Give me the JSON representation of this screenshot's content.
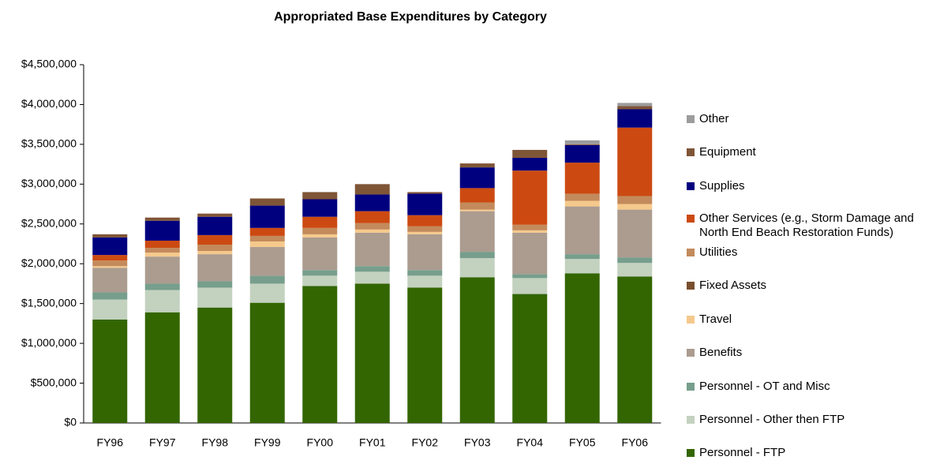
{
  "chart_data": {
    "type": "stacked_bar",
    "title": "Appropriated Base Expenditures by Category",
    "categories": [
      "FY96",
      "FY97",
      "FY98",
      "FY99",
      "FY00",
      "FY01",
      "FY02",
      "FY03",
      "FY04",
      "FY05",
      "FY06"
    ],
    "series": [
      {
        "name": "Personnel - FTP",
        "color": "#336600",
        "values": [
          1300000,
          1390000,
          1450000,
          1510000,
          1720000,
          1750000,
          1700000,
          1830000,
          1620000,
          1880000,
          1840000
        ]
      },
      {
        "name": "Personnel - Other then FTP",
        "color": "#c3d1bf",
        "values": [
          250000,
          280000,
          250000,
          240000,
          130000,
          150000,
          150000,
          240000,
          200000,
          180000,
          170000
        ]
      },
      {
        "name": "Personnel - OT and Misc",
        "color": "#779e8c",
        "values": [
          90000,
          80000,
          80000,
          100000,
          70000,
          70000,
          70000,
          80000,
          50000,
          60000,
          70000
        ]
      },
      {
        "name": "Benefits",
        "color": "#ab9c8f",
        "values": [
          310000,
          340000,
          340000,
          360000,
          410000,
          420000,
          450000,
          510000,
          520000,
          600000,
          600000
        ]
      },
      {
        "name": "Travel",
        "color": "#f5c98c",
        "values": [
          20000,
          50000,
          40000,
          70000,
          40000,
          40000,
          30000,
          20000,
          30000,
          70000,
          70000
        ]
      },
      {
        "name": "Fixed Assets",
        "color": "#7a4e2d",
        "values": [
          0,
          0,
          0,
          0,
          0,
          0,
          0,
          0,
          0,
          0,
          0
        ]
      },
      {
        "name": "Utilities",
        "color": "#c38a5c",
        "values": [
          70000,
          60000,
          80000,
          70000,
          80000,
          80000,
          70000,
          90000,
          70000,
          90000,
          100000
        ]
      },
      {
        "name": "Other Services (e.g., Storm Damage and North End Beach Restoration Funds)",
        "color": "#cc4a12",
        "values": [
          70000,
          90000,
          120000,
          100000,
          140000,
          150000,
          140000,
          180000,
          680000,
          390000,
          860000
        ]
      },
      {
        "name": "Supplies",
        "color": "#00007f",
        "values": [
          220000,
          250000,
          230000,
          280000,
          220000,
          210000,
          270000,
          260000,
          160000,
          220000,
          230000
        ]
      },
      {
        "name": "Equipment",
        "color": "#7f5537",
        "values": [
          40000,
          40000,
          40000,
          90000,
          90000,
          130000,
          20000,
          50000,
          100000,
          10000,
          40000
        ]
      },
      {
        "name": "Other",
        "color": "#9c9c9c",
        "values": [
          0,
          0,
          0,
          0,
          0,
          0,
          0,
          0,
          0,
          50000,
          40000
        ]
      }
    ],
    "ylim": [
      0,
      4500000
    ],
    "yticks": [
      {
        "value": 0,
        "label": "$0"
      },
      {
        "value": 500000,
        "label": "$500,000"
      },
      {
        "value": 1000000,
        "label": "$1,000,000"
      },
      {
        "value": 1500000,
        "label": "$1,500,000"
      },
      {
        "value": 2000000,
        "label": "$2,000,000"
      },
      {
        "value": 2500000,
        "label": "$2,500,000"
      },
      {
        "value": 3000000,
        "label": "$3,000,000"
      },
      {
        "value": 3500000,
        "label": "$3,500,000"
      },
      {
        "value": 4000000,
        "label": "$4,000,000"
      },
      {
        "value": 4500000,
        "label": "$4,500,000"
      }
    ],
    "grid": false
  }
}
